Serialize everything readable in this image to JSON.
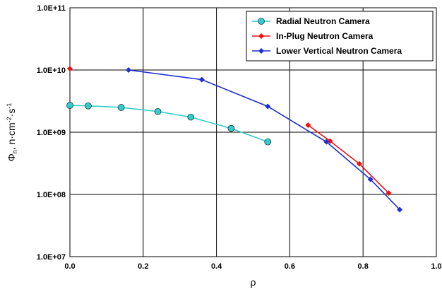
{
  "chart_data": {
    "type": "line",
    "xlabel": "ρ",
    "ylabel_parts": [
      "Φ",
      "n",
      ", n·cm",
      "-2",
      "·s",
      "-1"
    ],
    "xlim": [
      0.0,
      1.0
    ],
    "ylim": [
      10000000,
      100000000000
    ],
    "y_scale": "log",
    "grid": true,
    "x_tick_labels": [
      "0.0",
      "0.2",
      "0.4",
      "0.6",
      "0.8",
      "1.0"
    ],
    "y_tick_labels": [
      "1.0E+07",
      "1.0E+08",
      "1.0E+09",
      "1.0E+10",
      "1.0E+11"
    ],
    "legend_position": "top-right",
    "series": [
      {
        "name": "Radial Neutron Camera",
        "color": "#33CCCC",
        "marker": "circle",
        "x": [
          0.0,
          0.05,
          0.14,
          0.24,
          0.33,
          0.44,
          0.54
        ],
        "y": [
          2700000000,
          2650000000,
          2500000000,
          2150000000,
          1750000000,
          1150000000,
          700000000
        ]
      },
      {
        "name": "In-Plug Neutron Camera",
        "color": "#EE1111",
        "marker": "diamond",
        "x": [
          0.0,
          0.65,
          0.71,
          0.79,
          0.87
        ],
        "y": [
          10500000000,
          1300000000,
          720000000,
          310000000,
          105000000
        ]
      },
      {
        "name": "Lower Vertical Neutron Camera",
        "color": "#1F2FD0",
        "marker": "diamond",
        "x": [
          0.16,
          0.36,
          0.54,
          0.7,
          0.82,
          0.9
        ],
        "y": [
          10000000000,
          7000000000,
          2600000000,
          700000000,
          175000000,
          57000000
        ]
      }
    ]
  }
}
